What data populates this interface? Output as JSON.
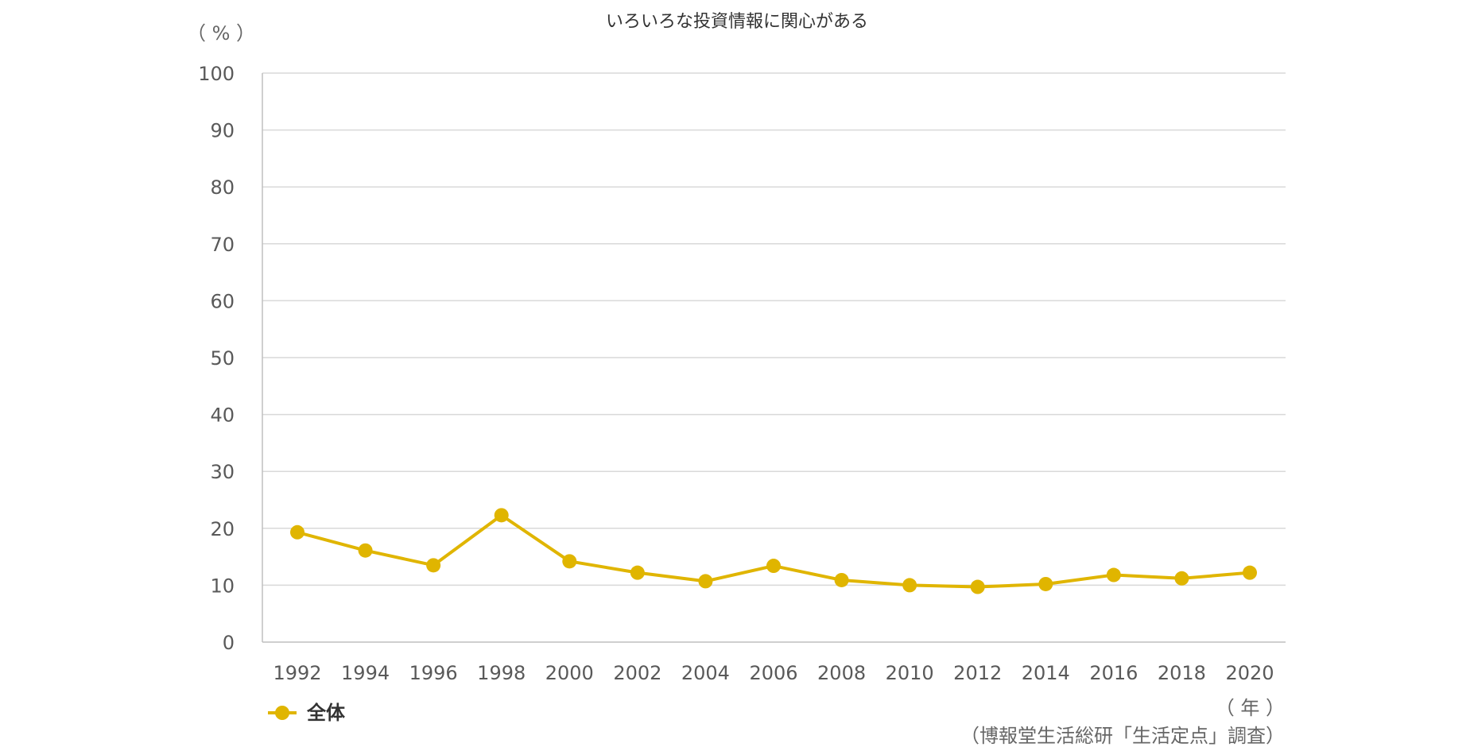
{
  "chart_data": {
    "type": "line",
    "title": "いろいろな投資情報に関心がある",
    "ylabel": "（ % ）",
    "xlabel": "（ 年 ）",
    "source": "（博報堂生活総研「生活定点」調査）",
    "ylim": [
      0,
      100
    ],
    "yticks": [
      0,
      10,
      20,
      30,
      40,
      50,
      60,
      70,
      80,
      90,
      100
    ],
    "categories": [
      "1992",
      "1994",
      "1996",
      "1998",
      "2000",
      "2002",
      "2004",
      "2006",
      "2008",
      "2010",
      "2012",
      "2014",
      "2016",
      "2018",
      "2020"
    ],
    "series": [
      {
        "name": "全体",
        "color": "#e0b500",
        "values": [
          19.3,
          16.1,
          13.5,
          22.3,
          14.2,
          12.2,
          10.7,
          13.4,
          10.9,
          10.0,
          9.7,
          10.2,
          11.8,
          11.2,
          12.2
        ]
      }
    ],
    "grid": true,
    "legend": "bottom-left"
  }
}
